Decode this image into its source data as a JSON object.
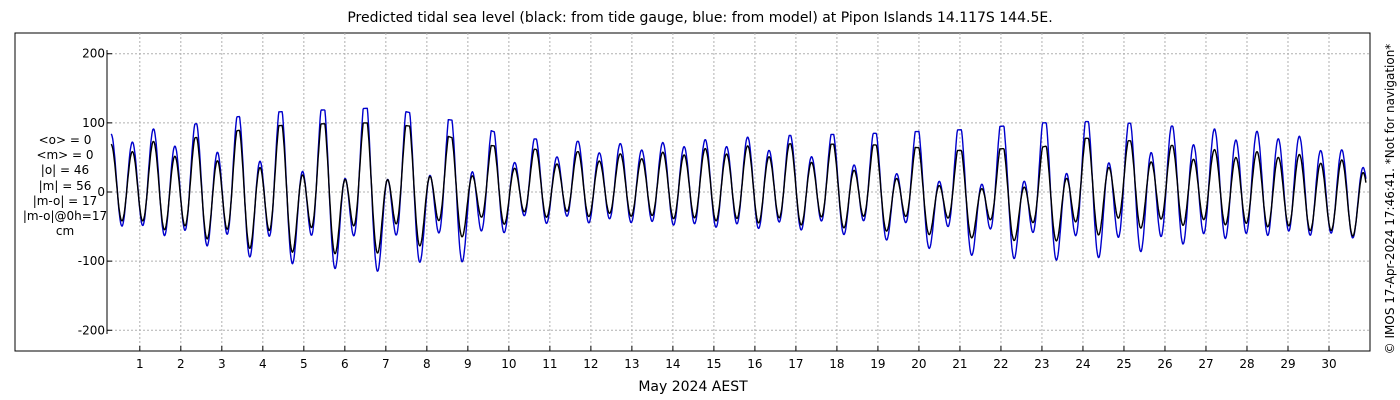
{
  "title": "Predicted tidal sea level (black: from tide gauge, blue: from model) at Pipon Islands 14.117S 144.5E.",
  "stats": [
    "<o> = 0",
    "<m> = 0",
    "|o| = 46",
    "|m| = 56",
    "|m-o| = 17",
    "|m-o|@0h=17",
    "cm"
  ],
  "copyright": "© IMOS 17-Apr-2024 17:46:41. *Not for navigation*",
  "colors": {
    "gauge": "#000000",
    "model": "#0000cc",
    "grid": "#b0b0b0"
  },
  "chart_data": {
    "type": "line",
    "title": "Predicted tidal sea level (black: from tide gauge, blue: from model) at Pipon Islands 14.117S 144.5E.",
    "xlabel": "May 2024 AEST",
    "ylabel": "",
    "x_ticks": [
      "1",
      "2",
      "3",
      "4",
      "5",
      "6",
      "7",
      "8",
      "9",
      "10",
      "11",
      "12",
      "13",
      "14",
      "15",
      "16",
      "17",
      "18",
      "19",
      "20",
      "21",
      "22",
      "23",
      "24",
      "25",
      "26",
      "27",
      "28",
      "29",
      "30"
    ],
    "xlim": [
      0.2,
      31.0
    ],
    "y_ticks": [
      "200",
      "100",
      "0",
      "-100",
      "-200"
    ],
    "ylim": [
      -230,
      230
    ],
    "grid": true,
    "series": [
      {
        "name": "from tide gauge",
        "color": "#000000",
        "envelope": [
          {
            "day": 0.3,
            "high": 70,
            "low": -42
          },
          {
            "day": 2,
            "high": 75,
            "low": -65
          },
          {
            "day": 4,
            "high": 95,
            "low": -95
          },
          {
            "day": 6,
            "high": 100,
            "low": -100
          },
          {
            "day": 7,
            "high": 100,
            "low": -98
          },
          {
            "day": 8,
            "high": 92,
            "low": -85
          },
          {
            "day": 9,
            "high": 70,
            "low": -70
          },
          {
            "day": 10,
            "high": 65,
            "low": -50
          },
          {
            "day": 11,
            "high": 60,
            "low": -40
          },
          {
            "day": 13,
            "high": 55,
            "low": -38
          },
          {
            "day": 15,
            "high": 65,
            "low": -45
          },
          {
            "day": 17,
            "high": 70,
            "low": -52
          },
          {
            "day": 19,
            "high": 68,
            "low": -62
          },
          {
            "day": 21,
            "high": 60,
            "low": -72
          },
          {
            "day": 23,
            "high": 65,
            "low": -80
          },
          {
            "day": 24,
            "high": 78,
            "low": -75
          },
          {
            "day": 25,
            "high": 75,
            "low": -60
          },
          {
            "day": 27,
            "high": 62,
            "low": -50
          },
          {
            "day": 29,
            "high": 58,
            "low": -55
          },
          {
            "day": 30.9,
            "high": 42,
            "low": -70
          }
        ]
      },
      {
        "name": "from model",
        "color": "#0000cc",
        "envelope": [
          {
            "day": 0.3,
            "high": 85,
            "low": -50
          },
          {
            "day": 2,
            "high": 95,
            "low": -75
          },
          {
            "day": 4,
            "high": 115,
            "low": -110
          },
          {
            "day": 6,
            "high": 120,
            "low": -125
          },
          {
            "day": 7,
            "high": 122,
            "low": -128
          },
          {
            "day": 8,
            "high": 110,
            "low": -110
          },
          {
            "day": 9,
            "high": 100,
            "low": -112
          },
          {
            "day": 10,
            "high": 80,
            "low": -60
          },
          {
            "day": 11,
            "high": 75,
            "low": -50
          },
          {
            "day": 13,
            "high": 70,
            "low": -48
          },
          {
            "day": 15,
            "high": 78,
            "low": -55
          },
          {
            "day": 17,
            "high": 82,
            "low": -60
          },
          {
            "day": 19,
            "high": 85,
            "low": -75
          },
          {
            "day": 21,
            "high": 90,
            "low": -100
          },
          {
            "day": 23,
            "high": 100,
            "low": -110
          },
          {
            "day": 24,
            "high": 102,
            "low": -108
          },
          {
            "day": 25,
            "high": 100,
            "low": -100
          },
          {
            "day": 27,
            "high": 92,
            "low": -75
          },
          {
            "day": 29,
            "high": 88,
            "low": -65
          },
          {
            "day": 30.9,
            "high": 50,
            "low": -72
          }
        ]
      }
    ]
  }
}
